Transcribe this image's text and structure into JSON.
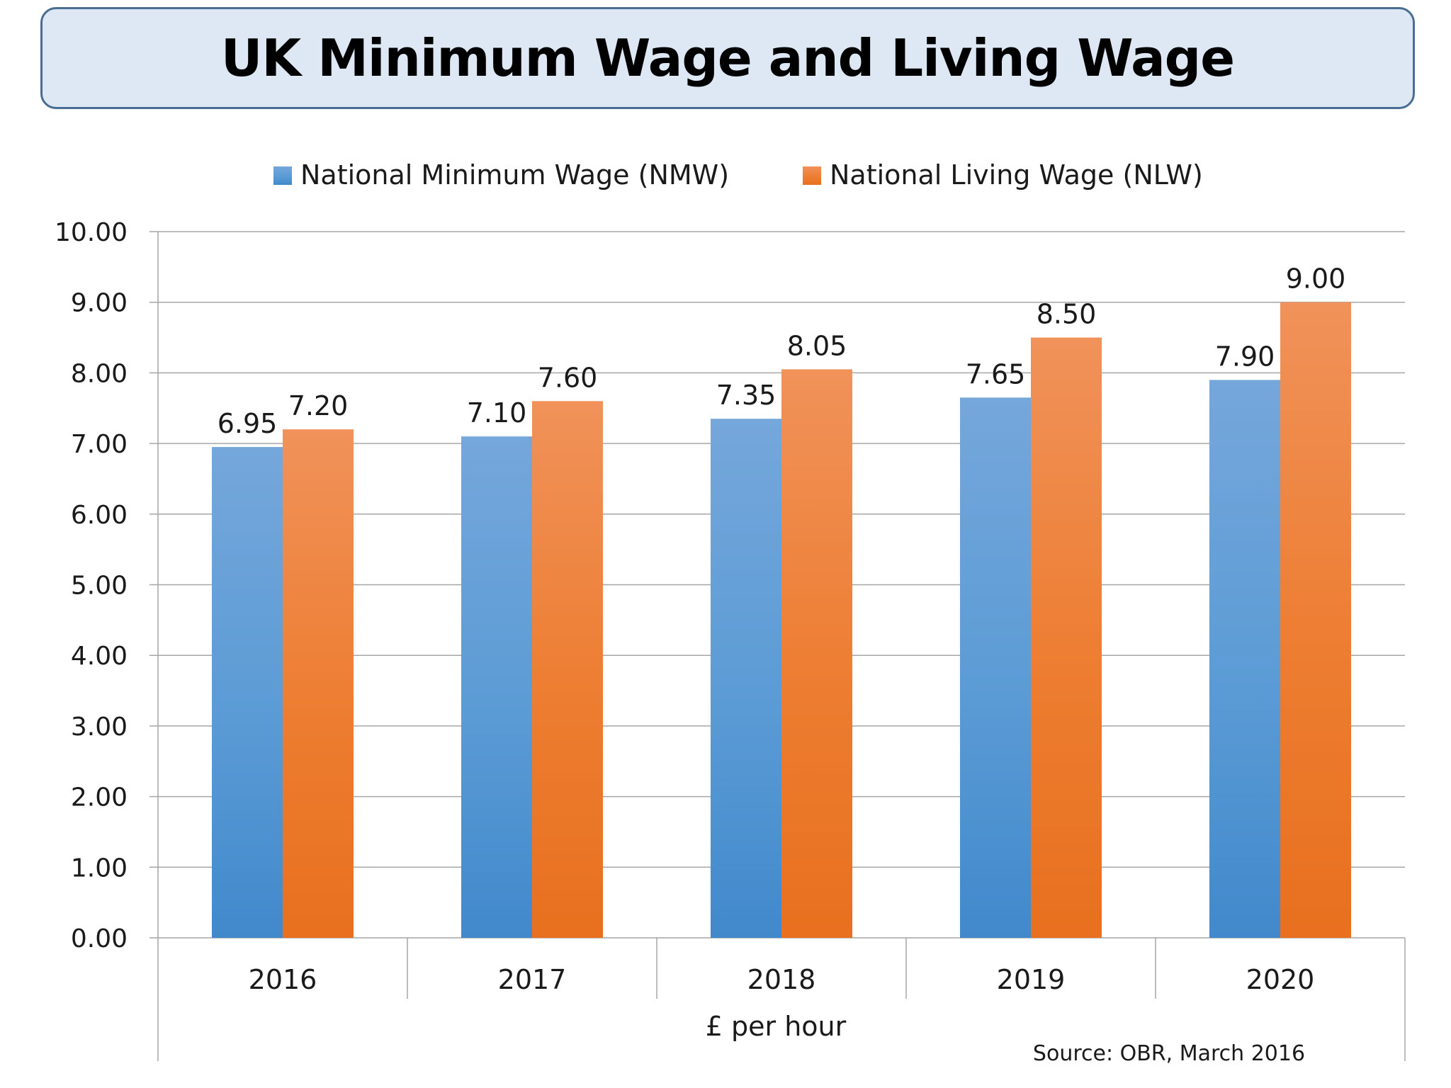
{
  "title": "UK Minimum Wage and Living Wage",
  "chart_data": {
    "type": "bar",
    "title": "UK Minimum Wage and Living Wage",
    "categories": [
      "2016",
      "2017",
      "2018",
      "2019",
      "2020"
    ],
    "series": [
      {
        "name": "National Minimum Wage (NMW)",
        "values": [
          6.95,
          7.1,
          7.35,
          7.65,
          7.9
        ],
        "labels": [
          "6.95",
          "7.10",
          "7.35",
          "7.65",
          "7.90"
        ],
        "color": "#5b9bd5",
        "color_top": "#75a7db",
        "color_bottom": "#4189cc"
      },
      {
        "name": "National Living Wage (NLW)",
        "values": [
          7.2,
          7.6,
          8.05,
          8.5,
          9.0
        ],
        "labels": [
          "7.20",
          "7.60",
          "8.05",
          "8.50",
          "9.00"
        ],
        "color": "#ed7d31",
        "color_top": "#f0925a",
        "color_bottom": "#e8701f"
      }
    ],
    "xlabel": "£ per hour",
    "ylabel": "",
    "ylim": [
      0,
      10
    ],
    "yticks": [
      "0.00",
      "1.00",
      "2.00",
      "3.00",
      "4.00",
      "5.00",
      "6.00",
      "7.00",
      "8.00",
      "9.00",
      "10.00"
    ],
    "grid": true,
    "legend": "top-center",
    "source": "Source: OBR, March 2016"
  }
}
